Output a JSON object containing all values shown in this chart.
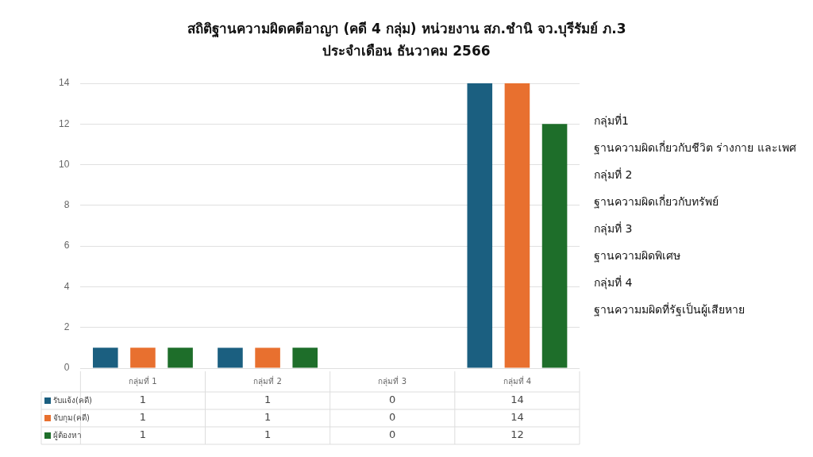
{
  "chart_data": {
    "type": "bar",
    "title": "สถิติฐานความผิดคดีอาญา (คดี 4 กลุ่ม) หน่วยงาน สภ.ชำนิ จว.บุรีรัมย์ ภ.3",
    "subtitle": "ประจำเดือน ธันวาคม 2566",
    "categories": [
      "กลุ่มที่ 1",
      "กลุ่มที่ 2",
      "กลุ่มที่ 3",
      "กลุ่มที่ 4"
    ],
    "series": [
      {
        "name": "รับแจ้ง(คดี)",
        "color": "#1b5f80",
        "values": [
          1,
          1,
          0,
          14
        ]
      },
      {
        "name": "จับกุม(คดี)",
        "color": "#e8702f",
        "values": [
          1,
          1,
          0,
          14
        ]
      },
      {
        "name": "ผู้ต้องหา",
        "color": "#1e6e2a",
        "values": [
          1,
          1,
          0,
          12
        ]
      }
    ],
    "ylim": [
      0,
      14
    ],
    "yticks": [
      0,
      2,
      4,
      6,
      8,
      10,
      12,
      14
    ],
    "grid": "y",
    "legend": "bottom",
    "data_labels": true,
    "annotations": [
      "กลุ่มที่1",
      "ฐานความผิดเกี่ยวกับชีวิต ร่างกาย และเพศ",
      "กลุ่มที่ 2",
      "ฐานความผิดเกี่ยวกับทรัพย์",
      "กลุ่มที่ 3",
      "ฐานความผิดพิเศษ",
      "กลุ่มที่ 4",
      "ฐานความมผิดที่รัฐเป็นผู้เสียหาย"
    ]
  }
}
